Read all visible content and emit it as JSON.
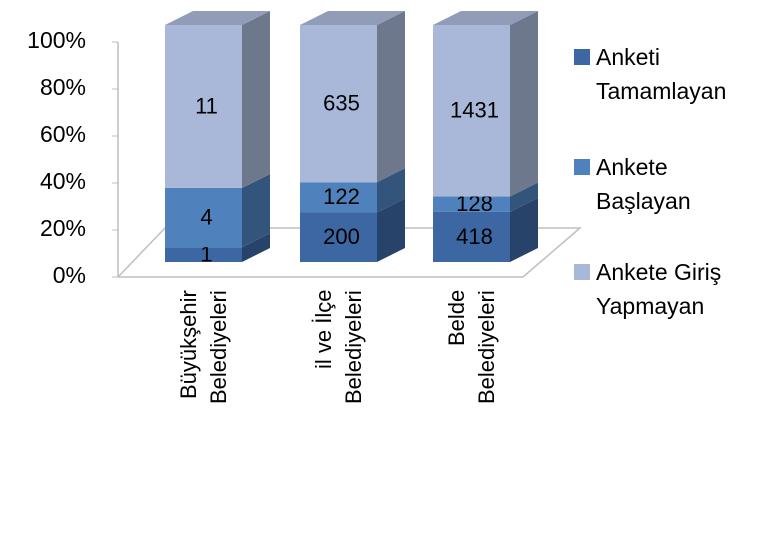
{
  "chart_data": {
    "type": "bar",
    "stacked": "percent",
    "categories": [
      "Büyükşehir Belediyeleri",
      "il ve İlçe Belediyeleri",
      "Belde Belediyeleri"
    ],
    "series": [
      {
        "name": "Anketi Tamamlayan",
        "color": "#3c67a3",
        "values": [
          1,
          200,
          418
        ]
      },
      {
        "name": "Ankete Başlayan",
        "color": "#4f81bd",
        "values": [
          4,
          122,
          128
        ]
      },
      {
        "name": "Ankete Giriş Yapmayan",
        "color": "#a9b8d8",
        "values": [
          11,
          635,
          1431
        ]
      }
    ],
    "ylim": [
      0,
      100
    ],
    "yticks": [
      {
        "value": 0,
        "label": "0%"
      },
      {
        "value": 20,
        "label": "20%"
      },
      {
        "value": 40,
        "label": "40%"
      },
      {
        "value": 60,
        "label": "60%"
      },
      {
        "value": 80,
        "label": "80%"
      },
      {
        "value": 100,
        "label": "100%"
      }
    ],
    "legend": "right"
  }
}
